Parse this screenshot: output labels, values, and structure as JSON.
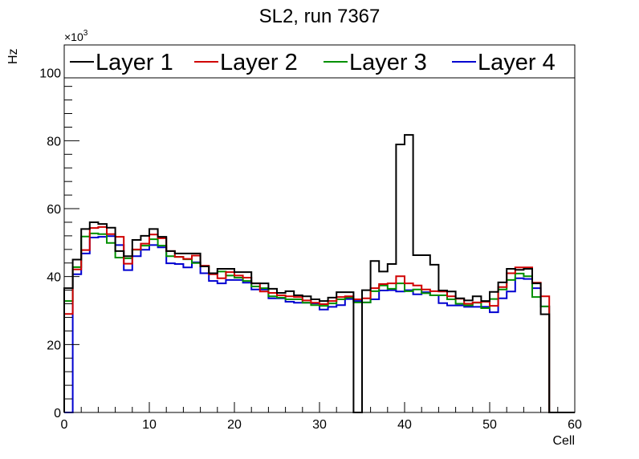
{
  "chart_data": {
    "type": "line",
    "style": "step-histogram",
    "title": "SL2, run 7367",
    "xlabel": "Cell",
    "ylabel": "Hz",
    "y_multiplier_label": "×10",
    "y_multiplier_exponent": "3",
    "xlim": [
      0,
      60
    ],
    "ylim": [
      0,
      108.2
    ],
    "x_ticks": [
      0,
      10,
      20,
      30,
      40,
      50,
      60
    ],
    "y_ticks": [
      0,
      20,
      40,
      60,
      80,
      100
    ],
    "grid": false,
    "legend_position": "top",
    "bin_width": 1,
    "series": [
      {
        "name": "Layer 1",
        "color": "#000000",
        "values": [
          36.6,
          45,
          54,
          56,
          55.5,
          54.4,
          47.5,
          46,
          50.8,
          52,
          54,
          51.7,
          47.5,
          46.8,
          46.8,
          46.8,
          43,
          41,
          42.3,
          42.3,
          41.3,
          41.3,
          38,
          38,
          36.4,
          35.2,
          35.7,
          34.5,
          34.2,
          33.3,
          32.8,
          33.8,
          35.4,
          35.4,
          0,
          36,
          44.6,
          41.5,
          43.7,
          78.9,
          81.7,
          46.3,
          46.3,
          43.5,
          35.9,
          35.6,
          33.6,
          33,
          34.2,
          32.8,
          35.5,
          38.3,
          42.3,
          42,
          42.3,
          38,
          28.9,
          0,
          0,
          0
        ]
      },
      {
        "name": "Layer 2",
        "color": "#d00000",
        "values": [
          29,
          42.1,
          47.8,
          54.3,
          54.6,
          52.5,
          51.7,
          43.8,
          48,
          49.7,
          52.4,
          51.3,
          47.5,
          45.8,
          45.2,
          46.2,
          43.2,
          40.7,
          39.5,
          41.3,
          40.3,
          39.7,
          38,
          35.6,
          35.2,
          34.5,
          34.2,
          34,
          33,
          32.3,
          31.9,
          32.8,
          34,
          34.2,
          33.3,
          33.6,
          36.6,
          37.8,
          38,
          40.1,
          38,
          37.4,
          36.2,
          35.7,
          35.6,
          34.2,
          33.5,
          32,
          32.4,
          32.6,
          31.4,
          36.9,
          41,
          42.7,
          42.7,
          38.2,
          34.2,
          0,
          0,
          0
        ]
      },
      {
        "name": "Layer 3",
        "color": "#009000",
        "values": [
          32.8,
          42.8,
          51.8,
          52.7,
          52.5,
          49.9,
          45.6,
          45.4,
          47.9,
          49.1,
          51,
          49.1,
          46,
          45.8,
          45.1,
          44,
          43,
          40.9,
          41.5,
          40.3,
          39.7,
          38.7,
          37.1,
          36.6,
          34.2,
          33.8,
          33.3,
          33.3,
          32.3,
          31.6,
          31.4,
          32.1,
          33.3,
          33.8,
          32.4,
          32.4,
          35.7,
          37.4,
          36.4,
          38,
          35.7,
          36.2,
          35.1,
          34.5,
          34.5,
          33.3,
          32,
          31.5,
          32.3,
          30.7,
          33.4,
          36.2,
          39,
          40.9,
          40.1,
          34,
          31.2,
          0,
          0,
          0
        ]
      },
      {
        "name": "Layer 4",
        "color": "#0000d0",
        "values": [
          0,
          40.7,
          46.8,
          51.5,
          51.7,
          51.9,
          49.3,
          41.9,
          46,
          47.9,
          49.3,
          48.6,
          43.9,
          43.7,
          42.7,
          44.2,
          41,
          38.7,
          38,
          39,
          39,
          38.2,
          36.2,
          36.2,
          33.6,
          33.6,
          32.6,
          32.3,
          32.3,
          32.1,
          30.3,
          31.1,
          31.6,
          33.4,
          32.8,
          32.4,
          33.3,
          35.9,
          36,
          35.6,
          36,
          34.8,
          35.4,
          34.5,
          32.2,
          31.5,
          31.5,
          31.1,
          31.1,
          31.1,
          29.5,
          33.6,
          35.6,
          39.5,
          39.3,
          36.6,
          31.2,
          0,
          0,
          0
        ]
      }
    ]
  }
}
